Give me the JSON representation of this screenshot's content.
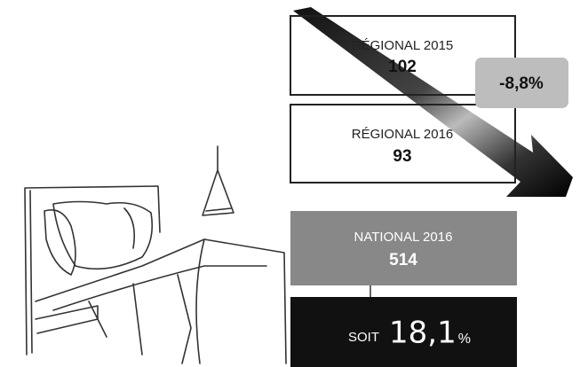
{
  "boxes": [
    {
      "label": "RÉGIONAL 2015",
      "value": 102
    },
    {
      "label": "RÉGIONAL 2016",
      "value": 93
    },
    {
      "label": "NATIONAL 2016",
      "value": 514
    }
  ],
  "change": "-8,8%",
  "share": {
    "prefix": "SOIT",
    "value": "18,1",
    "unit": "%"
  }
}
